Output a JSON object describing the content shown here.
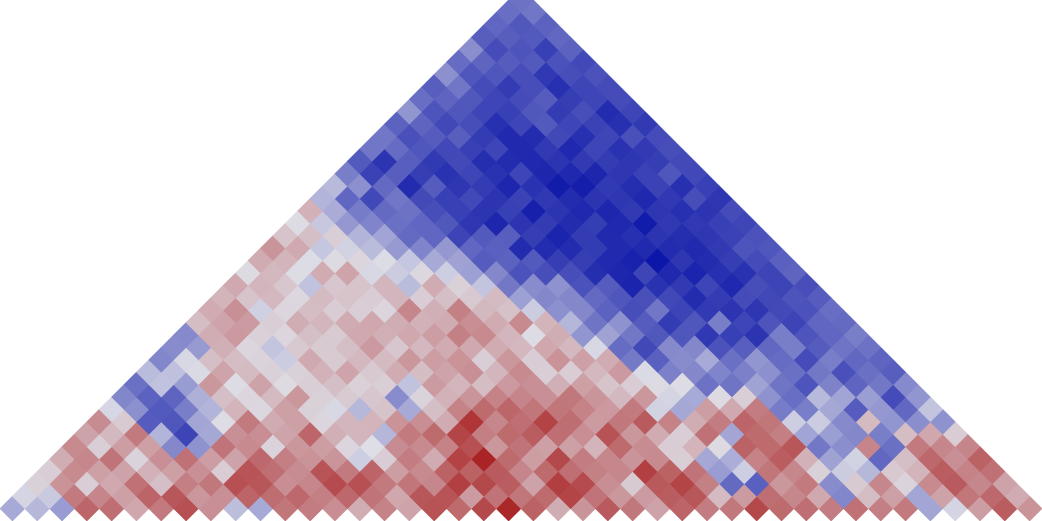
{
  "chart_data": {
    "type": "heatmap",
    "layout": "triangular",
    "title": "",
    "xlabel": "",
    "ylabel": "",
    "legend": "none",
    "grid": false,
    "colormap": {
      "low": "#0c16a8",
      "mid": "#dedee6",
      "high": "#a00000"
    },
    "value_range": [
      -1,
      1
    ],
    "n": 42,
    "values": [
      [
        -0.26,
        -0.19,
        -0.33,
        0.54,
        0.5,
        0.25,
        0.45,
        0.64,
        0.35,
        -0.16,
        -0.26,
        0.47,
        0.44,
        0.36,
        0.22,
        0.41,
        0.26,
        0.63,
        0.52,
        0.67,
        0.82,
        0.56,
        0.22,
        0.33,
        0.59,
        0.46,
        0.27,
        0.55,
        0.44,
        0.46,
        0.67,
        0.52,
        0.5,
        0.44,
        0.49,
        0.43,
        0.45,
        -0.28,
        -0.05,
        0.29,
        0.58,
        0.34
      ],
      [
        -0.05,
        -0.1,
        0.45,
        0.4,
        0.28,
        0.55,
        0.61,
        0.32,
        0.35,
        0.55,
        0.51,
        0.53,
        0.43,
        0.53,
        0.48,
        0.25,
        0.61,
        0.62,
        0.3,
        0.48,
        0.47,
        0.52,
        0.69,
        0.48,
        0.32,
        0.3,
        0.58,
        0.61,
        0.16,
        0.3,
        0.5,
        0.39,
        0.24,
        -0.44,
        0.15,
        0.28,
        -0.28,
        0.27,
        0.47,
        0.53,
        0.23
      ],
      [
        0.06,
        0.34,
        0.07,
        0.24,
        0.49,
        0.14,
        0.43,
        0.46,
        0.64,
        0.61,
        0.36,
        0.39,
        0.66,
        0.64,
        0.45,
        0.47,
        0.39,
        0.71,
        0.67,
        0.58,
        0.27,
        0.72,
        0.66,
        0.36,
        0.09,
        0.6,
        0.69,
        0.42,
        -0.58,
        -0.63,
        0.32,
        0.45,
        -0.41,
        0.09,
        0.39,
        0.05,
        0.38,
        0.59,
        0.39,
        0.27
      ],
      [
        0.07,
        0.38,
        0.28,
        0.27,
        0.2,
        0.28,
        0.35,
        0.08,
        0.62,
        0.5,
        0.37,
        0.62,
        0.45,
        0.55,
        0.29,
        0.38,
        0.56,
        0.56,
        0.59,
        0.4,
        0.52,
        0.5,
        0.42,
        0.39,
        0.71,
        0.56,
        0.48,
        -0.33,
        -0.08,
        0.47,
        0.39,
        0.06,
        -0.09,
        -0.19,
        0.1,
        0.19,
        0.58,
        0.41,
        0.49
      ],
      [
        0.22,
        0.39,
        0.48,
        0.05,
        0.35,
        0.49,
        0.29,
        0.27,
        0.53,
        0.43,
        0.34,
        0.33,
        -0.08,
        0.08,
        0.44,
        0.23,
        0.7,
        0.84,
        0.52,
        0.29,
        0.67,
        0.44,
        0.39,
        0.33,
        0.38,
        0.07,
        -0.27,
        -0.24,
        0.41,
        0.58,
        0.2,
        -0.3,
        -0.06,
        -0.59,
        0.14,
        0.53,
        0.35,
        0.56
      ],
      [
        0.38,
        0.07,
        0.29,
        0.28,
        -0.43,
        -0.38,
        0.48,
        0.38,
        0.05,
        0.32,
        0.29,
        0.04,
        0.0,
        0.37,
        0.38,
        0.41,
        0.64,
        0.32,
        0.48,
        0.28,
        0.28,
        0.19,
        0.52,
        0.37,
        0.08,
        0.19,
        0.02,
        0.56,
        0.52,
        0.61,
        -0.51,
        -0.4,
        0.4,
        -0.55,
        0.45,
        0.39,
        0.4
      ],
      [
        0.27,
        0.17,
        0.45,
        -0.21,
        -0.77,
        -0.27,
        0.35,
        0.36,
        0.26,
        0.54,
        0.21,
        0.18,
        -0.2,
        0.45,
        0.52,
        0.69,
        0.43,
        0.52,
        0.58,
        0.5,
        0.36,
        0.63,
        0.32,
        0.23,
        0.07,
        0.49,
        -0.28,
        0.52,
        0.43,
        -0.29,
        -0.32,
        -0.43,
        -0.48,
        0.15,
        0.25,
        0.08
      ],
      [
        0.37,
        0.09,
        -0.65,
        -0.68,
        -0.28,
        0.01,
        0.45,
        0.23,
        0.28,
        0.04,
        0.18,
        0.19,
        0.34,
        0.36,
        0.23,
        0.76,
        0.39,
        0.5,
        0.7,
        0.51,
        0.3,
        0.46,
        0.59,
        0.41,
        0.22,
        0.44,
        0.55,
        0.47,
        -0.08,
        -0.09,
        -0.42,
        0.16,
        -0.36,
        -0.4,
        -0.38
      ],
      [
        -0.04,
        -0.39,
        -0.66,
        -0.48,
        -0.21,
        0.19,
        0.03,
        0.28,
        0.06,
        -0.03,
        -0.19,
        0.12,
        -0.26,
        0.14,
        0.41,
        0.52,
        0.54,
        0.47,
        0.47,
        0.41,
        0.31,
        0.45,
        -0.06,
        -0.27,
        0.29,
        0.24,
        0.44,
        -0.49,
        -0.48,
        -0.27,
        -0.65,
        -0.35,
        -0.59,
        -0.13
      ],
      [
        -0.44,
        -0.62,
        -0.61,
        -0.23,
        0.14,
        0.04,
        0.16,
        0.32,
        0.06,
        0.09,
        0.11,
        -0.41,
        0.05,
        0.2,
        0.33,
        0.41,
        0.4,
        0.35,
        0.46,
        0.33,
        0.17,
        0.32,
        -0.05,
        -0.26,
        0.02,
        0.07,
        -0.38,
        -0.56,
        -0.18,
        -0.29,
        -0.32,
        -0.73,
        -0.36
      ],
      [
        -0.55,
        -0.14,
        -0.33,
        0.32,
        0.01,
        0.27,
        0.02,
        0.07,
        0.14,
        0.06,
        0.07,
        -0.14,
        0.3,
        0.18,
        0.15,
        0.31,
        0.35,
        0.21,
        0.28,
        0.12,
        0.08,
        0.02,
        0.01,
        -0.54,
        -0.53,
        -0.3,
        -0.53,
        -0.69,
        -0.46,
        -0.61,
        -0.51,
        -0.42
      ],
      [
        -0.17,
        -0.15,
        -0.02,
        0.26,
        0.16,
        0.06,
        0.06,
        0.2,
        0.26,
        0.1,
        0.23,
        0.15,
        0.26,
        0.35,
        0.18,
        0.38,
        0.07,
        0.08,
        0.17,
        0.31,
        -0.02,
        -0.47,
        -0.43,
        -0.45,
        -0.47,
        -0.39,
        -0.55,
        -0.51,
        -0.71,
        -0.55,
        -0.64
      ],
      [
        -0.44,
        -0.03,
        0.14,
        0.15,
        0.05,
        -0.09,
        0.24,
        0.09,
        0.17,
        0.16,
        0.32,
        0.29,
        0.34,
        0.07,
        0.32,
        0.08,
        0.34,
        0.28,
        0.23,
        -0.5,
        -0.63,
        -0.41,
        -0.26,
        -0.55,
        -0.36,
        -0.57,
        -0.73,
        -0.48,
        -0.59,
        -0.61
      ],
      [
        -0.41,
        -0.34,
        0.21,
        0.04,
        -0.13,
        0.1,
        0.09,
        0.14,
        0.31,
        0.11,
        0.17,
        0.23,
        0.24,
        0.23,
        0.17,
        0.25,
        0.17,
        -0.03,
        -0.57,
        -0.75,
        -0.42,
        -0.43,
        -0.7,
        -0.64,
        -0.59,
        -0.48,
        -0.65,
        -0.53,
        -0.54
      ],
      [
        -0.42,
        0.22,
        0.31,
        0.06,
        0.04,
        0.14,
        0.09,
        0.24,
        0.21,
        0.25,
        0.29,
        0.42,
        0.38,
        0.18,
        0.01,
        0.22,
        -0.36,
        -0.3,
        -0.51,
        -0.67,
        -0.68,
        -0.83,
        -0.79,
        -0.85,
        -0.48,
        -0.69,
        -0.6,
        -0.48
      ],
      [
        0.15,
        0.26,
        0.3,
        0.07,
        0.22,
        0.18,
        0.23,
        0.25,
        0.22,
        0.2,
        0.23,
        0.36,
        0.23,
        0.38,
        0.19,
        -0.2,
        -0.53,
        -0.38,
        -0.65,
        -0.81,
        -0.68,
        -0.48,
        -0.76,
        -0.69,
        -0.77,
        -0.6,
        -0.58
      ],
      [
        0.23,
        0.35,
        -0.07,
        0.04,
        0.15,
        0.08,
        0.07,
        0.04,
        0.39,
        0.21,
        0.42,
        0.17,
        0.13,
        -0.09,
        -0.39,
        -0.43,
        -0.62,
        -0.72,
        -0.52,
        -0.77,
        -0.82,
        -0.85,
        -0.84,
        -0.74,
        -0.7,
        -0.56
      ],
      [
        0.19,
        0.12,
        0.17,
        0.03,
        0.16,
        0.12,
        0.08,
        0.18,
        0.08,
        0.14,
        0.1,
        0.16,
        -0.31,
        -0.43,
        -0.43,
        -0.58,
        -0.68,
        -0.71,
        -0.75,
        -0.89,
        -0.81,
        -0.73,
        -0.75,
        -0.69,
        -0.65
      ],
      [
        0.24,
        0.18,
        0.11,
        -0.14,
        0.11,
        0.12,
        0.18,
        -0.17,
        0.23,
        0.06,
        -0.13,
        -0.51,
        -0.41,
        -0.38,
        -0.7,
        -0.65,
        -0.93,
        -0.86,
        -0.82,
        -0.76,
        -0.91,
        -0.72,
        -0.77,
        -0.72
      ],
      [
        0.02,
        0.17,
        -0.01,
        0.23,
        0.26,
        -0.03,
        -0.09,
        0.03,
        -0.08,
        -0.31,
        -0.43,
        -0.7,
        -0.72,
        -0.72,
        -0.88,
        -0.92,
        -0.76,
        -0.91,
        -0.93,
        -0.87,
        -0.86,
        -0.77,
        -0.61
      ],
      [
        0.23,
        0.19,
        -0.01,
        0.02,
        0.04,
        -0.01,
        -0.12,
        -0.26,
        -0.3,
        -0.65,
        -0.62,
        -0.66,
        -0.8,
        -0.8,
        -0.9,
        -0.94,
        -1.0,
        -0.84,
        -0.89,
        -0.8,
        -0.73,
        -0.63
      ],
      [
        0.33,
        0.24,
        -0.12,
        -0.06,
        -0.17,
        -0.34,
        -0.45,
        -0.35,
        -0.6,
        -0.63,
        -0.89,
        -0.89,
        -0.89,
        -0.81,
        -0.9,
        -0.9,
        -0.89,
        -0.9,
        -0.82,
        -0.69,
        -0.68
      ],
      [
        0.12,
        0.14,
        0.07,
        -0.21,
        -0.29,
        -0.58,
        -0.6,
        -0.77,
        -0.66,
        -0.64,
        -0.8,
        -0.93,
        -0.81,
        -0.9,
        -0.87,
        -0.85,
        -0.88,
        -0.84,
        -0.78,
        -0.7
      ],
      [
        0.01,
        -0.11,
        -0.35,
        -0.45,
        -0.55,
        -0.6,
        -0.67,
        -0.84,
        -0.92,
        -0.85,
        -0.81,
        -0.89,
        -0.8,
        -0.91,
        -0.97,
        -0.83,
        -0.83,
        -0.79,
        -0.76
      ],
      [
        0.2,
        -0.25,
        -0.49,
        -0.58,
        -0.54,
        -0.72,
        -0.79,
        -0.85,
        -0.79,
        -0.95,
        -0.85,
        -0.91,
        -0.92,
        -0.82,
        -0.84,
        -0.87,
        -0.85,
        -0.73
      ],
      [
        -0.21,
        -0.6,
        -0.75,
        -0.52,
        -0.74,
        -0.79,
        -0.75,
        -0.85,
        -0.78,
        -0.83,
        -0.89,
        -0.85,
        -0.84,
        -0.91,
        -0.83,
        -0.72,
        -0.84
      ],
      [
        -0.18,
        -0.39,
        -0.58,
        -0.89,
        -0.65,
        -0.84,
        -0.81,
        -0.92,
        -0.86,
        -0.97,
        -0.96,
        -0.82,
        -0.88,
        -0.78,
        -0.87,
        -0.79
      ],
      [
        -0.48,
        -0.78,
        -0.64,
        -0.8,
        -0.86,
        -0.76,
        -0.86,
        -0.76,
        -0.92,
        -0.91,
        -0.92,
        -0.84,
        -0.78,
        -0.68,
        -0.75
      ],
      [
        -0.66,
        -0.85,
        -0.64,
        -0.82,
        -0.74,
        -0.88,
        -0.89,
        -0.91,
        -0.85,
        -0.82,
        -0.81,
        -0.84,
        -0.8,
        -0.74
      ],
      [
        -0.52,
        -0.57,
        -0.68,
        -0.75,
        -0.79,
        -0.76,
        -0.9,
        -0.82,
        -0.91,
        -0.76,
        -0.86,
        -0.82,
        -0.72
      ],
      [
        -0.52,
        -0.71,
        -0.65,
        -0.64,
        -0.81,
        -0.9,
        -0.89,
        -0.75,
        -0.87,
        -0.76,
        -0.71,
        -0.73
      ],
      [
        -0.62,
        -0.61,
        -0.75,
        -0.72,
        -0.87,
        -0.76,
        -0.66,
        -0.76,
        -0.78,
        -0.87,
        -0.82
      ],
      [
        -0.36,
        -0.69,
        -0.68,
        -0.76,
        -0.79,
        -0.67,
        -0.81,
        -0.72,
        -0.89,
        -0.76
      ],
      [
        -0.56,
        -0.61,
        -0.67,
        -0.76,
        -0.73,
        -0.65,
        -0.8,
        -0.76,
        -0.73
      ],
      [
        -0.64,
        -0.52,
        -0.73,
        -0.81,
        -0.72,
        -0.87,
        -0.76,
        -0.73
      ],
      [
        -0.39,
        -0.68,
        -0.68,
        -0.72,
        -0.83,
        -0.72,
        -0.7
      ],
      [
        -0.57,
        -0.61,
        -0.65,
        -0.66,
        -0.7,
        -0.75
      ],
      [
        -0.4,
        -0.73,
        -0.69,
        -0.79,
        -0.62
      ],
      [
        -0.64,
        -0.64,
        -0.66,
        -0.59
      ],
      [
        -0.6,
        -0.67,
        -0.62
      ],
      [
        -0.56,
        -0.52
      ],
      [
        -0.54
      ]
    ]
  }
}
